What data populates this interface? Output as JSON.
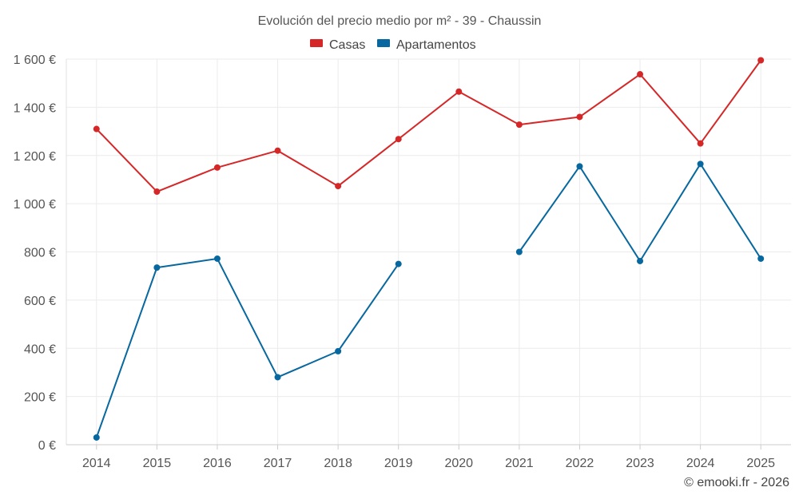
{
  "chart_data": {
    "type": "line",
    "title": "Evolución del precio medio por m² - 39 - Chaussin",
    "categories": [
      "2014",
      "2015",
      "2016",
      "2017",
      "2018",
      "2019",
      "2020",
      "2021",
      "2022",
      "2023",
      "2024",
      "2025"
    ],
    "series": [
      {
        "name": "Casas",
        "color": "#d62728",
        "values": [
          1310,
          1050,
          1150,
          1220,
          1073,
          1268,
          1465,
          1328,
          1360,
          1537,
          1250,
          1595
        ]
      },
      {
        "name": "Apartamentos",
        "color": "#07689f",
        "values": [
          30,
          735,
          772,
          280,
          388,
          750,
          null,
          800,
          1155,
          762,
          1165,
          772
        ]
      }
    ],
    "y_ticks": [
      0,
      200,
      400,
      600,
      800,
      1000,
      1200,
      1400,
      1600
    ],
    "y_tick_labels": [
      "0 €",
      "200 €",
      "400 €",
      "600 €",
      "800 €",
      "1 000 €",
      "1 200 €",
      "1 400 €",
      "1 600 €"
    ],
    "ylim": [
      0,
      1600
    ],
    "xlabel": "",
    "ylabel": "",
    "grid": true,
    "legend_position": "top-center"
  },
  "credit": "© emooki.fr - 2026"
}
